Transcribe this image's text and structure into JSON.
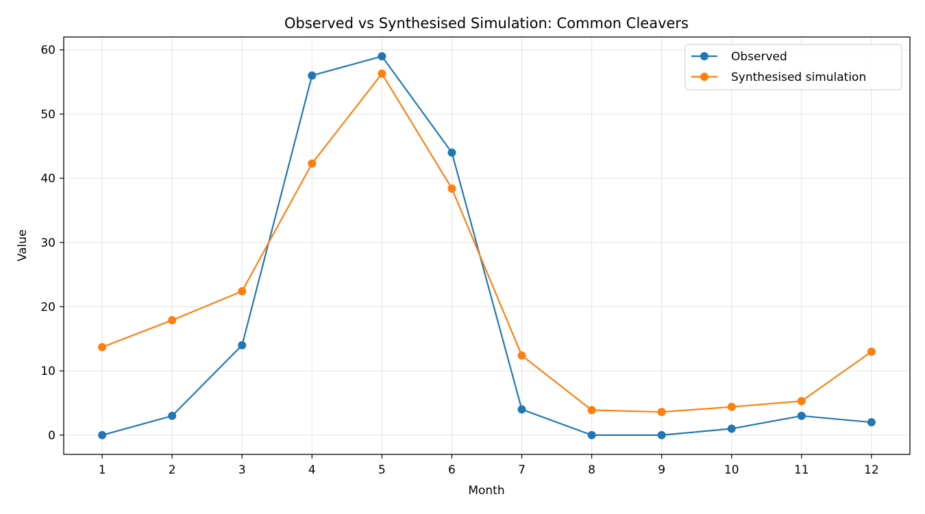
{
  "chart_data": {
    "type": "line",
    "title": "Observed vs Synthesised Simulation: Common Cleavers",
    "xlabel": "Month",
    "ylabel": "Value",
    "x": [
      1,
      2,
      3,
      4,
      5,
      6,
      7,
      8,
      9,
      10,
      11,
      12
    ],
    "x_ticks": [
      "1",
      "2",
      "3",
      "4",
      "5",
      "6",
      "7",
      "8",
      "9",
      "10",
      "11",
      "12"
    ],
    "y_ticks": [
      "0",
      "10",
      "20",
      "30",
      "40",
      "50",
      "60"
    ],
    "xlim": [
      0.45,
      12.55
    ],
    "ylim": [
      -3,
      62
    ],
    "grid": true,
    "legend_position": "top-right",
    "series": [
      {
        "name": "Observed",
        "color": "#1f77b4",
        "marker": "circle",
        "values": [
          0,
          3,
          14,
          56,
          59,
          44,
          4,
          0,
          0,
          1,
          3,
          2
        ]
      },
      {
        "name": "Synthesised simulation",
        "color": "#ff7f0e",
        "marker": "circle",
        "values": [
          13.7,
          17.9,
          22.4,
          42.3,
          56.3,
          38.4,
          12.4,
          3.9,
          3.6,
          4.4,
          5.3,
          13.0
        ]
      }
    ]
  }
}
